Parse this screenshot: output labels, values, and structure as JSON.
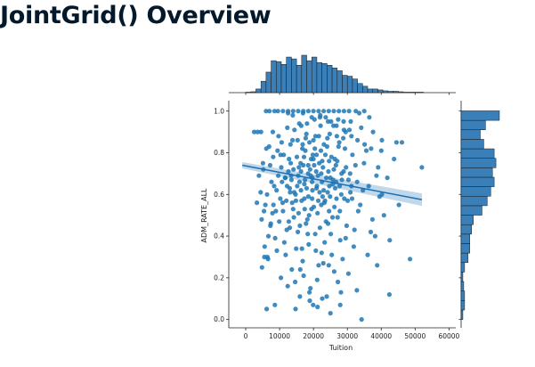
{
  "page": {
    "title": "JointGrid() Overview"
  },
  "chart_data": {
    "type": "scatter",
    "title": "",
    "xlabel": "Tuition",
    "ylabel": "ADM_RATE_ALL",
    "xlim": [
      -5000,
      62000
    ],
    "ylim": [
      -0.04,
      1.05
    ],
    "xticks": [
      0,
      10000,
      20000,
      30000,
      40000,
      50000,
      60000
    ],
    "xtick_labels": [
      "0",
      "10000",
      "20000",
      "30000",
      "40000",
      "50000",
      "60000"
    ],
    "yticks": [
      0.0,
      0.2,
      0.4,
      0.6,
      0.8,
      1.0
    ],
    "ytick_labels": [
      "0.0",
      "0.2",
      "0.4",
      "0.6",
      "0.8",
      "1.0"
    ],
    "grid": false,
    "colors": {
      "points": "#1f77b4",
      "bars": "#3a7fb8",
      "bar_edge": "#1a1a1a",
      "regression_line": "#1f6fb0",
      "confidence_band": "#a9cbe6"
    },
    "regression": {
      "x": [
        -1000,
        52000
      ],
      "y": [
        0.74,
        0.575
      ],
      "ci_halfwidth": [
        0.015,
        0.03
      ]
    },
    "points": [
      [
        12990,
        0.63
      ],
      [
        20000,
        0.86
      ],
      [
        18450,
        0.74
      ],
      [
        8200,
        0.55
      ],
      [
        22100,
        0.93
      ],
      [
        15400,
        0.42
      ],
      [
        26300,
        0.77
      ],
      [
        11800,
        0.31
      ],
      [
        19700,
        0.68
      ],
      [
        24600,
        0.52
      ],
      [
        9700,
        0.88
      ],
      [
        16900,
        0.99
      ],
      [
        21800,
        0.61
      ],
      [
        13600,
        0.24
      ],
      [
        28900,
        0.71
      ],
      [
        7400,
        0.46
      ],
      [
        17600,
        0.81
      ],
      [
        23300,
        0.37
      ],
      [
        31200,
        0.64
      ],
      [
        10500,
        0.73
      ],
      [
        25200,
        0.95
      ],
      [
        14800,
        0.57
      ],
      [
        19100,
        0.15
      ],
      [
        27400,
        0.83
      ],
      [
        6600,
        0.29
      ],
      [
        18200,
        0.48
      ],
      [
        22600,
        0.76
      ],
      [
        12300,
        0.92
      ],
      [
        33800,
        0.55
      ],
      [
        15900,
        0.66
      ],
      [
        20700,
        0.33
      ],
      [
        9100,
        0.62
      ],
      [
        24100,
        0.87
      ],
      [
        17100,
        0.21
      ],
      [
        29800,
        0.45
      ],
      [
        11200,
        0.79
      ],
      [
        26800,
        0.58
      ],
      [
        13900,
        0.98
      ],
      [
        21300,
        0.69
      ],
      [
        35600,
        0.81
      ],
      [
        8700,
        0.39
      ],
      [
        19400,
        0.53
      ],
      [
        23900,
        0.11
      ],
      [
        16200,
        0.75
      ],
      [
        30600,
        0.91
      ],
      [
        12700,
        0.47
      ],
      [
        25700,
        0.65
      ],
      [
        18800,
        0.85
      ],
      [
        5200,
        0.72
      ],
      [
        22900,
        0.27
      ],
      [
        14300,
        0.61
      ],
      [
        27900,
        0.38
      ],
      [
        20300,
        0.96
      ],
      [
        10900,
        0.56
      ],
      [
        32400,
        0.74
      ],
      [
        16600,
        0.34
      ],
      [
        24900,
        0.59
      ],
      [
        19900,
        0.07
      ],
      [
        13200,
        0.84
      ],
      [
        28400,
        0.67
      ],
      [
        7900,
        0.51
      ],
      [
        21900,
        0.44
      ],
      [
        17900,
        0.89
      ],
      [
        36900,
        0.42
      ],
      [
        11600,
        0.68
      ],
      [
        26100,
        0.23
      ],
      [
        15100,
        0.78
      ],
      [
        23600,
        0.97
      ],
      [
        18600,
        0.36
      ],
      [
        30100,
        0.57
      ],
      [
        9400,
        0.81
      ],
      [
        20900,
        0.63
      ],
      [
        14600,
        0.18
      ],
      [
        27100,
        0.49
      ],
      [
        16400,
        0.93
      ],
      [
        24400,
        0.71
      ],
      [
        12100,
        0.43
      ],
      [
        34600,
        0.62
      ],
      [
        19300,
        0.77
      ],
      [
        22300,
        0.55
      ],
      [
        40200,
        0.86
      ],
      [
        8400,
        0.64
      ],
      [
        25400,
        0.31
      ],
      [
        17300,
        0.58
      ],
      [
        29300,
        0.82
      ],
      [
        13400,
        0.69
      ],
      [
        21500,
        0.26
      ],
      [
        15600,
        0.51
      ],
      [
        23100,
        0.84
      ],
      [
        18100,
        0.94
      ],
      [
        31900,
        0.35
      ],
      [
        10200,
        0.58
      ],
      [
        26600,
        0.74
      ],
      [
        20500,
        0.41
      ],
      [
        14100,
        0.72
      ],
      [
        28100,
        0.13
      ],
      [
        6900,
        0.83
      ],
      [
        19600,
        0.66
      ],
      [
        24300,
        0.46
      ],
      [
        16800,
        0.28
      ],
      [
        38600,
        0.69
      ],
      [
        12500,
        0.99
      ],
      [
        22700,
        0.59
      ],
      [
        27700,
        0.64
      ],
      [
        17700,
        0.87
      ],
      [
        33200,
        0.52
      ],
      [
        11400,
        0.37
      ],
      [
        25900,
        0.93
      ],
      [
        20100,
        0.54
      ],
      [
        15300,
        0.86
      ],
      [
        21100,
        0.19
      ],
      [
        9900,
        0.47
      ],
      [
        29600,
        0.73
      ],
      [
        18300,
        0.41
      ],
      [
        23800,
        0.68
      ],
      [
        13700,
        0.56
      ],
      [
        26900,
        0.88
      ],
      [
        16300,
        0.62
      ],
      [
        42500,
        0.38
      ],
      [
        19800,
        0.79
      ],
      [
        8000,
        0.9
      ],
      [
        24700,
        0.64
      ],
      [
        14900,
        0.34
      ],
      [
        22200,
        0.81
      ],
      [
        30900,
        0.61
      ],
      [
        17400,
        0.53
      ],
      [
        12800,
        0.77
      ],
      [
        28600,
        0.29
      ],
      [
        20800,
        0.71
      ],
      [
        35100,
        0.84
      ],
      [
        10700,
        0.66
      ],
      [
        25600,
        0.49
      ],
      [
        18900,
        0.09
      ],
      [
        15700,
        0.73
      ],
      [
        23400,
        0.57
      ],
      [
        27300,
        0.96
      ],
      [
        13000,
        0.44
      ],
      [
        21600,
        0.88
      ],
      [
        32900,
        0.66
      ],
      [
        16100,
        0.24
      ],
      [
        19200,
        0.69
      ],
      [
        24000,
        0.83
      ],
      [
        11000,
        0.52
      ],
      [
        29100,
        0.58
      ],
      [
        45200,
        0.55
      ],
      [
        17200,
        0.78
      ],
      [
        22400,
        0.32
      ],
      [
        14400,
        0.91
      ],
      [
        26400,
        0.63
      ],
      [
        20200,
        0.74
      ],
      [
        9600,
        0.69
      ],
      [
        31500,
        0.79
      ],
      [
        18500,
        0.59
      ],
      [
        25100,
        0.41
      ],
      [
        13300,
        0.75
      ],
      [
        23000,
        0.62
      ],
      [
        37400,
        0.48
      ],
      [
        16700,
        0.82
      ],
      [
        21200,
        0.51
      ],
      [
        28300,
        0.7
      ],
      [
        5800,
        0.55
      ],
      [
        19500,
        0.97
      ],
      [
        24500,
        0.26
      ],
      [
        12200,
        0.64
      ],
      [
        27600,
        0.85
      ],
      [
        17800,
        0.46
      ],
      [
        30300,
        0.67
      ],
      [
        14700,
        0.6
      ],
      [
        22800,
        0.73
      ],
      [
        20600,
        0.88
      ],
      [
        10300,
        0.79
      ],
      [
        26200,
        0.54
      ],
      [
        15500,
        0.69
      ],
      [
        34100,
        0.92
      ],
      [
        18000,
        0.63
      ],
      [
        23700,
        0.47
      ],
      [
        13800,
        0.86
      ],
      [
        29500,
        0.39
      ],
      [
        21000,
        0.64
      ],
      [
        16500,
        0.57
      ],
      [
        25300,
        0.78
      ],
      [
        11700,
        0.68
      ],
      [
        39500,
        0.59
      ],
      [
        19000,
        0.72
      ],
      [
        24200,
        0.61
      ],
      [
        8900,
        0.52
      ],
      [
        27000,
        0.76
      ],
      [
        17500,
        0.67
      ],
      [
        22000,
        0.98
      ],
      [
        32100,
        0.43
      ],
      [
        14000,
        0.53
      ],
      [
        20400,
        0.82
      ],
      [
        26700,
        0.66
      ],
      [
        15800,
        0.94
      ],
      [
        23200,
        0.56
      ],
      [
        12600,
        0.71
      ],
      [
        18700,
        0.5
      ],
      [
        28800,
        0.87
      ],
      [
        21700,
        0.75
      ],
      [
        16000,
        0.45
      ],
      [
        30800,
        0.7
      ],
      [
        25800,
        0.67
      ],
      [
        19600,
        0.58
      ],
      [
        13100,
        0.61
      ],
      [
        24800,
        0.89
      ],
      [
        17000,
        0.74
      ],
      [
        43800,
        0.77
      ],
      [
        22500,
        0.66
      ],
      [
        10600,
        0.85
      ],
      [
        27800,
        0.52
      ],
      [
        20000,
        0.77
      ],
      [
        15200,
        0.64
      ],
      [
        29000,
        0.91
      ],
      [
        18400,
        0.7
      ],
      [
        23500,
        0.79
      ],
      [
        14200,
        0.49
      ],
      [
        36300,
        0.64
      ],
      [
        21400,
        0.57
      ],
      [
        16800,
        0.84
      ],
      [
        26000,
        0.72
      ],
      [
        12000,
        0.57
      ],
      [
        19700,
        0.62
      ],
      [
        25000,
        0.68
      ],
      [
        7200,
        0.74
      ],
      [
        31400,
        0.58
      ],
      [
        17300,
        0.65
      ],
      [
        22300,
        0.7
      ],
      [
        28200,
        0.6
      ],
      [
        13500,
        0.67
      ],
      [
        20900,
        0.79
      ],
      [
        24600,
        0.76
      ],
      [
        16300,
        0.71
      ],
      [
        48500,
        0.29
      ],
      [
        52000,
        0.73
      ],
      [
        3500,
        0.9
      ],
      [
        2500,
        0.9
      ],
      [
        4500,
        0.9
      ],
      [
        5500,
        0.3
      ],
      [
        4800,
        0.25
      ],
      [
        6200,
        0.05
      ],
      [
        8600,
        0.07
      ],
      [
        14700,
        0.05
      ],
      [
        21200,
        0.06
      ],
      [
        25000,
        0.03
      ],
      [
        27900,
        0.07
      ],
      [
        34200,
        0.0
      ],
      [
        38800,
        0.26
      ],
      [
        42400,
        0.12
      ],
      [
        46100,
        0.85
      ],
      [
        44500,
        0.85
      ],
      [
        41800,
        0.68
      ],
      [
        40200,
        0.6
      ],
      [
        37600,
        0.9
      ],
      [
        6000,
        1.0
      ],
      [
        7000,
        1.0
      ],
      [
        8500,
        1.0
      ],
      [
        9500,
        1.0
      ],
      [
        11000,
        1.0
      ],
      [
        12500,
        1.0
      ],
      [
        14000,
        1.0
      ],
      [
        15500,
        1.0
      ],
      [
        17000,
        1.0
      ],
      [
        18500,
        1.0
      ],
      [
        20000,
        1.0
      ],
      [
        21500,
        1.0
      ],
      [
        23000,
        1.0
      ],
      [
        24500,
        1.0
      ],
      [
        26000,
        1.0
      ],
      [
        27500,
        1.0
      ],
      [
        29000,
        1.0
      ],
      [
        30500,
        1.0
      ],
      [
        32500,
        1.0
      ],
      [
        35000,
        1.0
      ],
      [
        40000,
        0.81
      ],
      [
        36500,
        0.97
      ],
      [
        33500,
        0.99
      ],
      [
        31000,
        0.95
      ],
      [
        29500,
        0.9
      ],
      [
        26800,
        0.93
      ],
      [
        24300,
        0.95
      ],
      [
        21900,
        0.97
      ],
      [
        6700,
        0.4
      ],
      [
        7300,
        0.45
      ],
      [
        5600,
        0.35
      ],
      [
        6400,
        0.3
      ],
      [
        9200,
        0.33
      ],
      [
        10400,
        0.2
      ],
      [
        12400,
        0.16
      ],
      [
        16000,
        0.11
      ],
      [
        18800,
        0.13
      ],
      [
        22600,
        0.1
      ],
      [
        27200,
        0.18
      ],
      [
        30300,
        0.22
      ],
      [
        32800,
        0.14
      ],
      [
        36000,
        0.31
      ],
      [
        38200,
        0.4
      ],
      [
        40800,
        0.5
      ],
      [
        39100,
        0.73
      ],
      [
        37000,
        0.82
      ],
      [
        34900,
        0.75
      ],
      [
        33000,
        0.86
      ],
      [
        31200,
        0.88
      ],
      [
        28900,
        0.95
      ],
      [
        8100,
        0.78
      ],
      [
        7600,
        0.66
      ],
      [
        6300,
        0.6
      ],
      [
        5400,
        0.52
      ],
      [
        4700,
        0.48
      ],
      [
        6100,
        0.82
      ],
      [
        5100,
        0.75
      ],
      [
        3900,
        0.69
      ],
      [
        3300,
        0.56
      ],
      [
        4400,
        0.61
      ]
    ],
    "x_hist": {
      "bin_edges": [
        0,
        1500,
        3000,
        4500,
        6000,
        7500,
        9000,
        10500,
        12000,
        13500,
        15000,
        16500,
        18000,
        19500,
        21000,
        22500,
        24000,
        25500,
        27000,
        28500,
        30000,
        31500,
        33000,
        34500,
        36000,
        37500,
        39000,
        40500,
        42000,
        43500,
        45000,
        46500,
        48000,
        49500,
        51000,
        52500,
        54000
      ],
      "counts": [
        1,
        2,
        8,
        25,
        45,
        70,
        68,
        62,
        78,
        74,
        60,
        82,
        70,
        78,
        66,
        64,
        60,
        54,
        48,
        38,
        36,
        30,
        20,
        14,
        8,
        8,
        6,
        4,
        3,
        3,
        2,
        1,
        1,
        1,
        1,
        0
      ]
    },
    "y_hist": {
      "bin_edges": [
        0.0,
        0.0455,
        0.091,
        0.1365,
        0.182,
        0.2275,
        0.273,
        0.3185,
        0.364,
        0.4095,
        0.455,
        0.5005,
        0.546,
        0.5915,
        0.637,
        0.6825,
        0.728,
        0.7735,
        0.819,
        0.8645,
        0.91,
        0.9555,
        1.001
      ],
      "counts": [
        2,
        4,
        4,
        3,
        2,
        4,
        8,
        10,
        10,
        12,
        14,
        24,
        30,
        34,
        38,
        36,
        40,
        38,
        26,
        22,
        28,
        44
      ]
    }
  }
}
